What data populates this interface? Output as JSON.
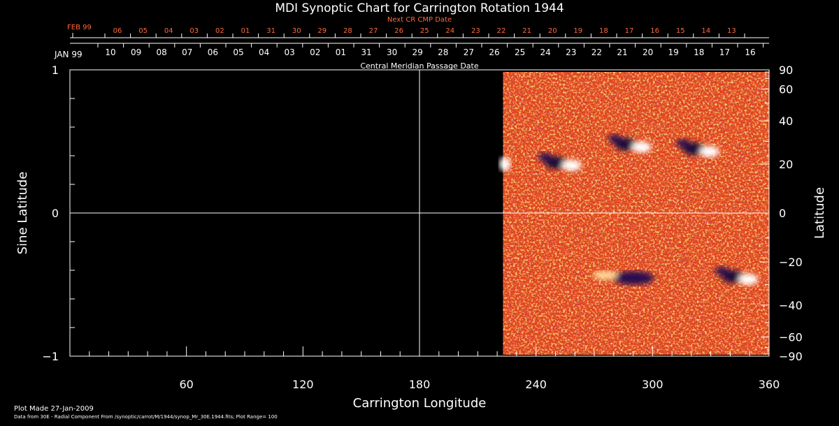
{
  "chart_data": {
    "type": "heatmap",
    "title": "MDI Synoptic Chart for Carrington Rotation 1944",
    "xlabel": "Carrington Longitude",
    "ylabel_left": "Sine Latitude",
    "ylabel_right": "Latitude",
    "xlim": [
      0,
      360
    ],
    "ylim": [
      -1,
      1
    ],
    "x_ticks": [
      60,
      120,
      180,
      240,
      300,
      360
    ],
    "y_left_ticks": [
      -1,
      0,
      1
    ],
    "y_right_ticks": [
      90,
      60,
      40,
      20,
      0,
      -20,
      -40,
      -60,
      -90
    ],
    "grid": {
      "x": [
        180
      ],
      "y": [
        0
      ]
    },
    "data_coverage": {
      "lon_start": 223,
      "lon_end": 360
    },
    "active_regions": [
      {
        "lon": 254,
        "lat": 20,
        "polarity": "mixed"
      },
      {
        "lon": 290,
        "lat": 28,
        "polarity": "mixed"
      },
      {
        "lon": 325,
        "lat": 26,
        "polarity": "mixed"
      },
      {
        "lon": 224,
        "lat": 20,
        "polarity": "positive"
      },
      {
        "lon": 290,
        "lat": -27,
        "polarity": "negative"
      },
      {
        "lon": 345,
        "lat": -27,
        "polarity": "mixed"
      }
    ],
    "top_axis_next": {
      "label": "Next CR CMP Date",
      "month": "FEB 99",
      "dates": [
        "06",
        "05",
        "04",
        "03",
        "02",
        "01",
        "31",
        "30",
        "29",
        "28",
        "27",
        "26",
        "25",
        "24",
        "23",
        "22",
        "21",
        "20",
        "19",
        "18",
        "17",
        "16",
        "15",
        "14",
        "13"
      ]
    },
    "top_axis_current": {
      "label": "Central Meridian Passage Date",
      "month": "JAN 99",
      "dates": [
        "10",
        "09",
        "08",
        "07",
        "06",
        "05",
        "04",
        "03",
        "02",
        "01",
        "31",
        "30",
        "29",
        "28",
        "27",
        "26",
        "25",
        "24",
        "23",
        "22",
        "21",
        "20",
        "19",
        "18",
        "17",
        "16"
      ]
    },
    "colors": {
      "next_axis": "#ff6a3a",
      "axis": "#ffffff",
      "field_base": "#e2461e"
    }
  },
  "footer": {
    "plot_made": "Plot Made 27-Jan-2009",
    "source": "Data from 30E - Radial Component From /synoptic/carrot/M/1944/synop_Mr_30E.1944.fits; Plot Range= 100"
  }
}
